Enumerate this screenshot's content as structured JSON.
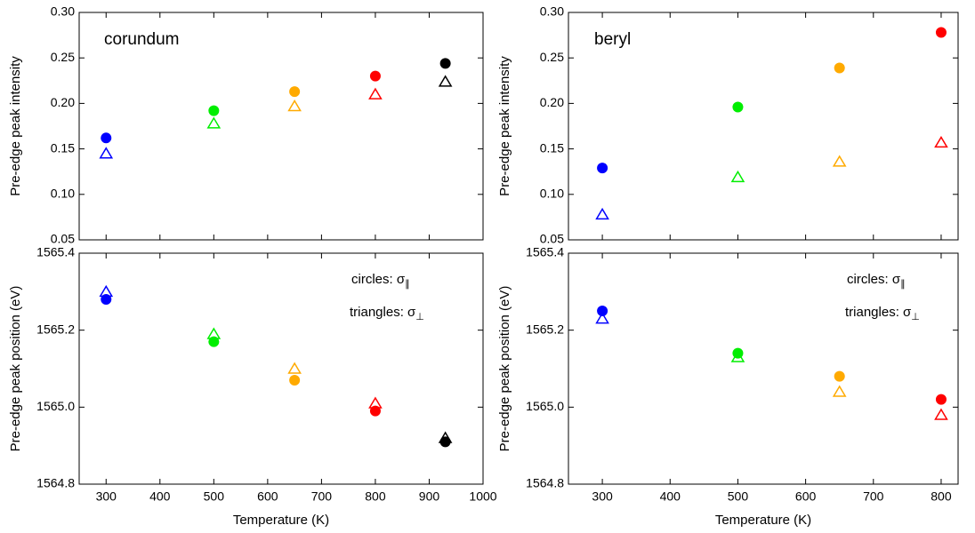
{
  "chart_data": [
    {
      "type": "scatter",
      "title": "corundum",
      "ylabel": "Pre-edge peak intensity",
      "x": [
        300,
        500,
        650,
        800,
        930
      ],
      "colors": [
        "#0000ff",
        "#00ee00",
        "#ffaa00",
        "#ff0000",
        "#000000"
      ],
      "series": [
        {
          "marker": "circle",
          "values": [
            0.162,
            0.192,
            0.213,
            0.23,
            0.244
          ]
        },
        {
          "marker": "triangle",
          "values": [
            0.145,
            0.178,
            0.197,
            0.21,
            0.224
          ]
        }
      ],
      "xlim": [
        250,
        1000
      ],
      "xticks": [
        300,
        400,
        500,
        600,
        700,
        800,
        900,
        1000
      ],
      "ylim": [
        0.05,
        0.3
      ],
      "yticks": [
        {
          "value": 0.05,
          "label": "0.05"
        },
        {
          "value": 0.1,
          "label": "0.10"
        },
        {
          "value": 0.15,
          "label": "0.15"
        },
        {
          "value": 0.2,
          "label": "0.20"
        },
        {
          "value": 0.25,
          "label": "0.25"
        },
        {
          "value": 0.3,
          "label": "0.30"
        }
      ]
    },
    {
      "type": "scatter",
      "xlabel": "Temperature (K)",
      "ylabel": "Pre-edge peak position (eV)",
      "annotations": [
        {
          "text": "circles: σ",
          "sub": "∥"
        },
        {
          "text": "triangles: σ",
          "sub": "⊥"
        }
      ],
      "x": [
        300,
        500,
        650,
        800,
        930
      ],
      "colors": [
        "#0000ff",
        "#00ee00",
        "#ffaa00",
        "#ff0000",
        "#000000"
      ],
      "series": [
        {
          "marker": "circle",
          "values": [
            1565.28,
            1565.17,
            1565.07,
            1564.99,
            1564.91
          ]
        },
        {
          "marker": "triangle",
          "values": [
            1565.3,
            1565.19,
            1565.1,
            1565.01,
            1564.92
          ]
        }
      ],
      "xlim": [
        250,
        1000
      ],
      "xticks": [
        300,
        400,
        500,
        600,
        700,
        800,
        900,
        1000
      ],
      "ylim": [
        1564.8,
        1565.4
      ],
      "yticks": [
        {
          "value": 1564.8,
          "label": "1564.8"
        },
        {
          "value": 1565.0,
          "label": "1565.0"
        },
        {
          "value": 1565.2,
          "label": "1565.2"
        },
        {
          "value": 1565.4,
          "label": "1565.4"
        }
      ]
    },
    {
      "type": "scatter",
      "title": "beryl",
      "ylabel": "Pre-edge peak intensity",
      "x": [
        300,
        500,
        650,
        800
      ],
      "colors": [
        "#0000ff",
        "#00ee00",
        "#ffaa00",
        "#ff0000"
      ],
      "series": [
        {
          "marker": "circle",
          "values": [
            0.129,
            0.196,
            0.239,
            0.278
          ]
        },
        {
          "marker": "triangle",
          "values": [
            0.078,
            0.119,
            0.136,
            0.157
          ]
        }
      ],
      "xlim": [
        250,
        825
      ],
      "xticks": [
        300,
        400,
        500,
        600,
        700,
        800
      ],
      "ylim": [
        0.05,
        0.3
      ],
      "yticks": [
        {
          "value": 0.05,
          "label": "0.05"
        },
        {
          "value": 0.1,
          "label": "0.10"
        },
        {
          "value": 0.15,
          "label": "0.15"
        },
        {
          "value": 0.2,
          "label": "0.20"
        },
        {
          "value": 0.25,
          "label": "0.25"
        },
        {
          "value": 0.3,
          "label": "0.30"
        }
      ]
    },
    {
      "type": "scatter",
      "xlabel": "Temperature (K)",
      "ylabel": "Pre-edge peak position (eV)",
      "annotations": [
        {
          "text": "circles: σ",
          "sub": "∥"
        },
        {
          "text": "triangles: σ",
          "sub": "⊥"
        }
      ],
      "x": [
        300,
        500,
        650,
        800
      ],
      "colors": [
        "#0000ff",
        "#00ee00",
        "#ffaa00",
        "#ff0000"
      ],
      "series": [
        {
          "marker": "circle",
          "values": [
            1565.25,
            1565.14,
            1565.08,
            1565.02
          ]
        },
        {
          "marker": "triangle",
          "values": [
            1565.23,
            1565.13,
            1565.04,
            1564.98
          ]
        }
      ],
      "xlim": [
        250,
        825
      ],
      "xticks": [
        300,
        400,
        500,
        600,
        700,
        800
      ],
      "ylim": [
        1564.8,
        1565.4
      ],
      "yticks": [
        {
          "value": 1564.8,
          "label": "1564.8"
        },
        {
          "value": 1565.0,
          "label": "1565.0"
        },
        {
          "value": 1565.2,
          "label": "1565.2"
        },
        {
          "value": 1565.4,
          "label": "1565.4"
        }
      ]
    }
  ]
}
